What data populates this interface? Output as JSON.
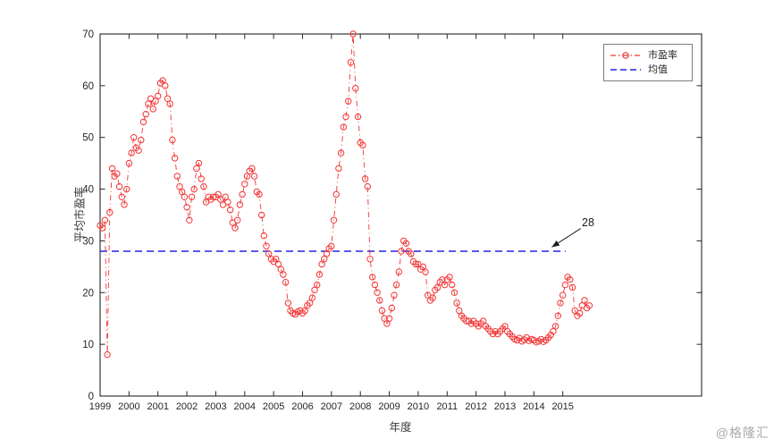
{
  "watermark": {
    "text": "@格隆汇"
  },
  "colors": {
    "series_pe": "#f23535",
    "series_mean": "#2424e0",
    "axis": "#262626",
    "annotation": "#1a1a1a",
    "watermark": "#a9a9a9",
    "background": "#ffffff"
  },
  "chart_data": {
    "type": "line",
    "title": "",
    "xlabel": "年度",
    "ylabel": "平均市盈率",
    "xlim": [
      1999,
      2019.8
    ],
    "ylim": [
      0,
      70
    ],
    "x_ticks": [
      1999,
      2000,
      2001,
      2002,
      2003,
      2004,
      2005,
      2006,
      2007,
      2008,
      2009,
      2010,
      2011,
      2012,
      2013,
      2014,
      2015
    ],
    "y_ticks": [
      0,
      10,
      20,
      30,
      40,
      50,
      60,
      70
    ],
    "grid": false,
    "legend_position": "top-right",
    "series": [
      {
        "name": "市盈率",
        "color": "#f23535",
        "style": "dash-dot",
        "marker": "circle",
        "x_start_year": 1999,
        "points_per_year": 12,
        "values": [
          33,
          32.5,
          34,
          8,
          35.5,
          44,
          42.5,
          43,
          40.5,
          38.5,
          37,
          40,
          45,
          47,
          50,
          48,
          47.5,
          49.5,
          53,
          54.5,
          56.5,
          57.5,
          55.5,
          57,
          58,
          60.5,
          61,
          60,
          57.5,
          56.5,
          49.5,
          46,
          42.5,
          40.5,
          39.5,
          38.5,
          36.5,
          34,
          38.5,
          40,
          44,
          45,
          42,
          40.5,
          37.5,
          38.5,
          38,
          38.5,
          38.5,
          39,
          38,
          37,
          38.5,
          37.5,
          36,
          33.5,
          32.5,
          34,
          37,
          39,
          41,
          42.5,
          43.5,
          44,
          42.5,
          39.5,
          39,
          35,
          31,
          29,
          27.5,
          26.5,
          26,
          26.5,
          25.5,
          24.5,
          23.5,
          22,
          18,
          16.5,
          16,
          15.8,
          16.3,
          16.5,
          16,
          16.5,
          17.5,
          18,
          19,
          20.5,
          21.5,
          23.5,
          25.5,
          26.5,
          27.5,
          28.5,
          29,
          34,
          39,
          44,
          47,
          52,
          54,
          57,
          64.5,
          70,
          59.5,
          54,
          49,
          48.5,
          42,
          40.5,
          26.5,
          23,
          21.5,
          20,
          18.5,
          16.5,
          15,
          14,
          15,
          17,
          19.5,
          21.5,
          24,
          28,
          30,
          29.5,
          28,
          27.5,
          26,
          25.5,
          25.5,
          24.5,
          25,
          24,
          19.5,
          18.5,
          19,
          20.5,
          21,
          22,
          22.5,
          21.5,
          22.5,
          23,
          21.5,
          20,
          18,
          16.5,
          15.5,
          15,
          14.5,
          14.5,
          14,
          14.5,
          14,
          13.5,
          14,
          14.5,
          13.5,
          13,
          12.5,
          12,
          12.5,
          12,
          12.5,
          13,
          13.5,
          12.5,
          12,
          11.5,
          11,
          10.8,
          11.2,
          10.6,
          10.9,
          11.3,
          10.7,
          11,
          10.8,
          10.4,
          10.6,
          11,
          10.5,
          10.8,
          11.3,
          11.8,
          12.5,
          13.5,
          15.5,
          18,
          19.5,
          21.5,
          23,
          22.5,
          21,
          16.5,
          15.5,
          16,
          17.5,
          18.5,
          17,
          17.5
        ]
      },
      {
        "name": "均值",
        "color": "#2424e0",
        "style": "dashed",
        "value": 28,
        "x_range": [
          1999,
          2015.1
        ]
      }
    ],
    "annotation": {
      "text": "28",
      "arrow_from": [
        2015.62,
        32.4
      ],
      "arrow_to": [
        2014.62,
        28.8
      ]
    }
  }
}
